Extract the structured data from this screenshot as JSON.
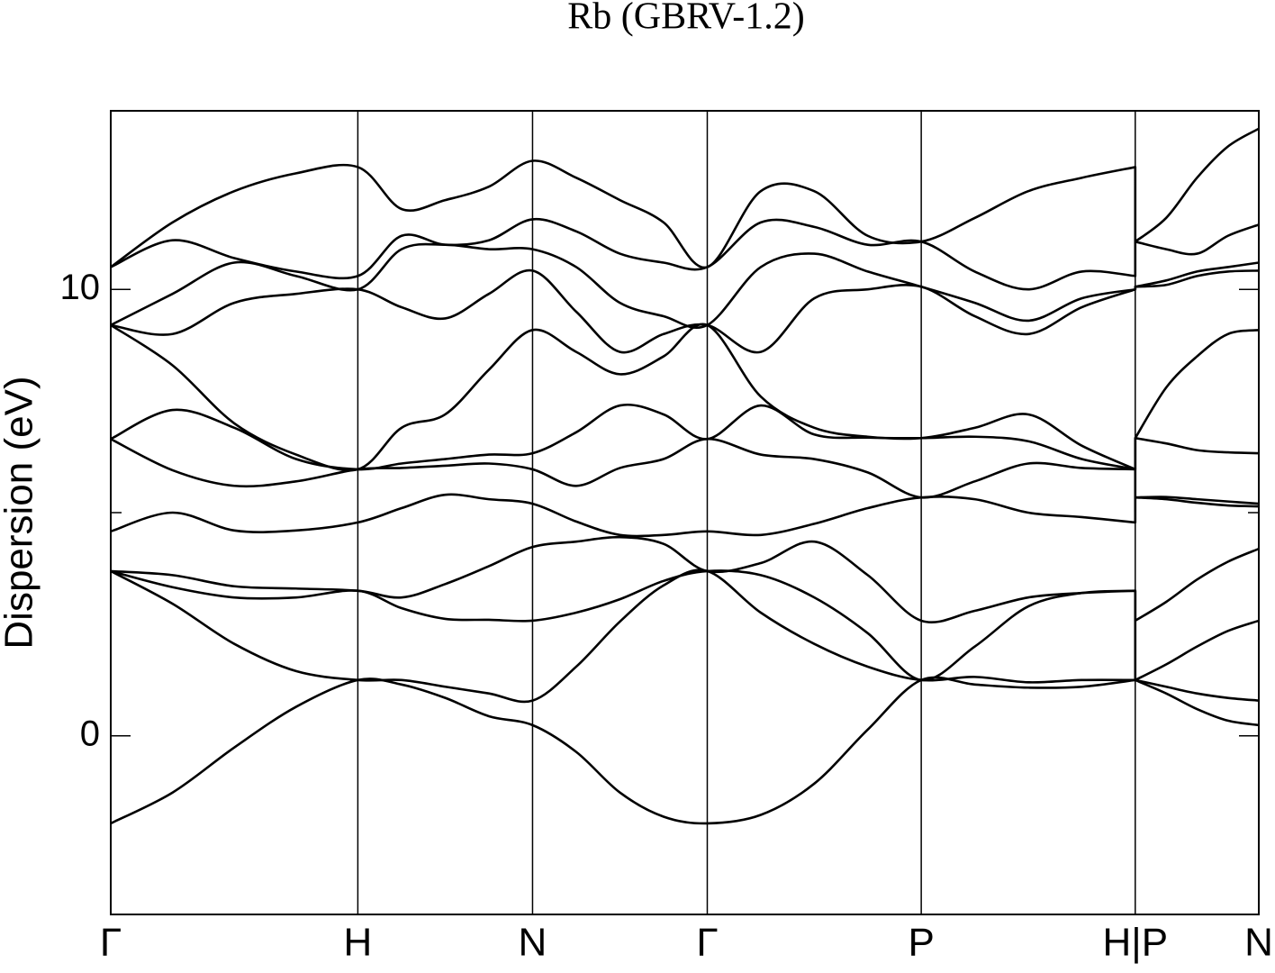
{
  "chart_data": {
    "type": "line",
    "title": "Rb (GBRV-1.2)",
    "y_label": "Dispersion (eV)",
    "x": [
      0,
      0.25,
      0.5,
      0.75,
      1.0,
      1.1768,
      1.3536,
      1.5303,
      1.7071,
      1.8839,
      2.0607,
      2.2374,
      2.4142,
      2.6307,
      2.8472,
      3.0637,
      3.2802,
      3.4967,
      3.7132,
      3.9298,
      4.1463,
      4.1463,
      4.2713,
      4.3963,
      4.5213,
      4.6463
    ],
    "xlim": [
      0,
      4.6463
    ],
    "xticks": [
      {
        "value": 0,
        "label": "Γ"
      },
      {
        "value": 1.0,
        "label": "H"
      },
      {
        "value": 1.7071,
        "label": "N"
      },
      {
        "value": 2.4142,
        "label": "Γ"
      },
      {
        "value": 3.2802,
        "label": "P"
      },
      {
        "value": 4.1463,
        "label": "H|P"
      },
      {
        "value": 4.6463,
        "label": "N"
      }
    ],
    "ylim": [
      -4,
      14
    ],
    "yticks": [
      0,
      10
    ],
    "yminorticks": [
      5
    ],
    "series": [
      {
        "color": "#000000",
        "values": [
          -1.96,
          -1.27,
          -0.26,
          0.65,
          1.25,
          1.15,
          0.85,
          0.44,
          0.24,
          -0.36,
          -1.27,
          -1.81,
          -1.96,
          -1.77,
          -1.07,
          0.14,
          1.25,
          1.15,
          1.08,
          1.1,
          1.25,
          1.25,
          0.95,
          0.6,
          0.34,
          0.24
        ]
      },
      {
        "color": "#000000",
        "values": [
          3.69,
          2.96,
          2.06,
          1.45,
          1.25,
          1.25,
          1.1,
          0.95,
          0.79,
          1.55,
          2.56,
          3.37,
          3.69,
          2.76,
          2.06,
          1.55,
          1.25,
          1.32,
          1.2,
          1.25,
          1.25,
          1.25,
          1.1,
          0.95,
          0.85,
          0.79
        ]
      },
      {
        "color": "#000000",
        "values": [
          3.69,
          3.33,
          3.1,
          3.1,
          3.25,
          2.86,
          2.62,
          2.6,
          2.58,
          2.76,
          3.06,
          3.47,
          3.69,
          3.6,
          3.1,
          2.3,
          1.25,
          2.0,
          2.9,
          3.2,
          3.25,
          1.25,
          1.6,
          2.0,
          2.35,
          2.58
        ]
      },
      {
        "color": "#000000",
        "values": [
          3.69,
          3.6,
          3.35,
          3.3,
          3.25,
          3.1,
          3.4,
          3.8,
          4.23,
          4.35,
          4.45,
          4.3,
          3.69,
          3.87,
          4.35,
          3.6,
          2.58,
          2.8,
          3.1,
          3.2,
          3.25,
          2.58,
          3.0,
          3.5,
          3.9,
          4.19
        ]
      },
      {
        "color": "#000000",
        "values": [
          4.58,
          5.0,
          4.6,
          4.6,
          4.78,
          5.1,
          5.4,
          5.3,
          5.2,
          4.8,
          4.5,
          4.5,
          4.58,
          4.5,
          4.75,
          5.1,
          5.34,
          5.3,
          5.0,
          4.9,
          4.78,
          5.34,
          5.3,
          5.22,
          5.16,
          5.14
        ]
      },
      {
        "color": "#000000",
        "values": [
          6.65,
          5.95,
          5.6,
          5.7,
          5.97,
          6.0,
          6.05,
          6.1,
          5.97,
          5.6,
          6.0,
          6.2,
          6.65,
          6.3,
          6.2,
          5.9,
          5.34,
          5.7,
          6.1,
          6.0,
          5.97,
          5.34,
          5.35,
          5.3,
          5.25,
          5.2
        ]
      },
      {
        "color": "#000000",
        "values": [
          6.65,
          7.3,
          6.9,
          6.2,
          5.97,
          6.1,
          6.2,
          6.3,
          6.33,
          6.8,
          7.4,
          7.2,
          6.65,
          7.4,
          6.75,
          6.68,
          6.67,
          6.7,
          6.6,
          6.2,
          5.97,
          6.67,
          6.55,
          6.4,
          6.35,
          6.33
        ]
      },
      {
        "color": "#000000",
        "values": [
          9.2,
          8.3,
          7.0,
          6.3,
          5.97,
          6.9,
          7.2,
          8.2,
          9.09,
          8.6,
          8.1,
          8.5,
          9.2,
          7.6,
          6.9,
          6.7,
          6.67,
          6.9,
          7.2,
          6.5,
          5.97,
          6.67,
          7.8,
          8.5,
          9.0,
          9.09
        ]
      },
      {
        "color": "#000000",
        "values": [
          9.2,
          9.0,
          9.7,
          9.9,
          10.0,
          9.6,
          9.35,
          9.9,
          10.42,
          9.5,
          8.6,
          9.0,
          9.2,
          8.6,
          9.8,
          10.0,
          10.06,
          9.4,
          9.0,
          9.6,
          10.0,
          10.06,
          10.1,
          10.3,
          10.4,
          10.42
        ]
      },
      {
        "color": "#000000",
        "values": [
          9.2,
          9.9,
          10.6,
          10.3,
          10.0,
          10.9,
          11.0,
          10.9,
          10.9,
          10.5,
          9.7,
          9.4,
          9.2,
          10.5,
          10.8,
          10.4,
          10.06,
          9.7,
          9.3,
          9.8,
          10.0,
          10.06,
          10.2,
          10.4,
          10.5,
          10.6
        ]
      },
      {
        "color": "#000000",
        "values": [
          10.5,
          11.1,
          10.7,
          10.4,
          10.3,
          11.2,
          11.0,
          11.1,
          11.57,
          11.3,
          10.8,
          10.6,
          10.5,
          11.5,
          11.4,
          11.0,
          11.07,
          10.4,
          10.0,
          10.4,
          10.3,
          11.07,
          10.9,
          10.8,
          11.2,
          11.45
        ]
      },
      {
        "color": "#000000",
        "values": [
          10.5,
          11.5,
          12.2,
          12.6,
          12.74,
          11.8,
          12.0,
          12.3,
          12.88,
          12.5,
          12.0,
          11.5,
          10.5,
          12.2,
          12.2,
          11.2,
          11.07,
          11.6,
          12.2,
          12.5,
          12.74,
          11.07,
          11.6,
          12.5,
          13.2,
          13.6
        ]
      }
    ]
  }
}
